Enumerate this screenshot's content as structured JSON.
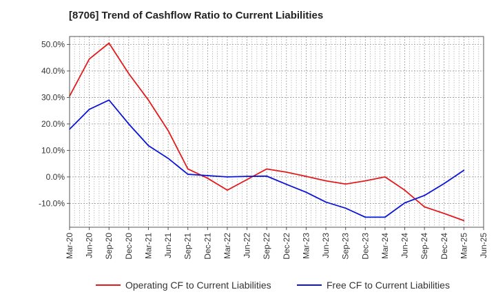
{
  "chart_data": {
    "type": "line",
    "title": "[8706]  Trend of Cashflow Ratio to Current Liabilities",
    "xlabel": "",
    "ylabel": "",
    "x_ticks": [
      "Mar-20",
      "Jun-20",
      "Sep-20",
      "Dec-20",
      "Mar-21",
      "Jun-21",
      "Sep-21",
      "Dec-21",
      "Mar-22",
      "Jun-22",
      "Sep-22",
      "Dec-22",
      "Mar-23",
      "Jun-23",
      "Sep-23",
      "Dec-23",
      "Mar-24",
      "Jun-24",
      "Sep-24",
      "Dec-24",
      "Mar-25",
      "Jun-25"
    ],
    "categories": [
      "Mar-20",
      "Jun-20",
      "Sep-20",
      "Dec-20",
      "Mar-21",
      "Jun-21",
      "Sep-21",
      "Dec-21",
      "Mar-22",
      "Jun-22",
      "Sep-22",
      "Dec-22",
      "Mar-23",
      "Jun-23",
      "Sep-23",
      "Dec-23",
      "Mar-24",
      "Jun-24",
      "Sep-24",
      "Dec-24",
      "Mar-25"
    ],
    "y_ticks": [
      -10,
      0,
      10,
      20,
      30,
      40,
      50
    ],
    "y_tick_labels": [
      "-10.0%",
      "0.0%",
      "10.0%",
      "20.0%",
      "30.0%",
      "40.0%",
      "50.0%"
    ],
    "ylim": [
      -19,
      53
    ],
    "grid": true,
    "legend_position": "bottom",
    "series": [
      {
        "name": "Operating CF to Current Liabilities",
        "color": "#e31a1c",
        "values": [
          30.5,
          44.5,
          50.5,
          39,
          29,
          17.5,
          3,
          -0.5,
          -5,
          -1,
          3,
          1.8,
          0.2,
          -1.5,
          -2.7,
          -1.5,
          0,
          -5,
          -11.3,
          -13.8,
          -16.5
        ]
      },
      {
        "name": "Free CF to Current Liabilities",
        "color": "#0a14d6",
        "values": [
          18,
          25.5,
          29,
          20,
          11.8,
          7,
          1,
          0.5,
          0,
          0.2,
          0.3,
          -2.8,
          -5.8,
          -9.5,
          -11.8,
          -15.2,
          -15.2,
          -9.8,
          -7,
          -2.5,
          2.5
        ]
      }
    ]
  }
}
